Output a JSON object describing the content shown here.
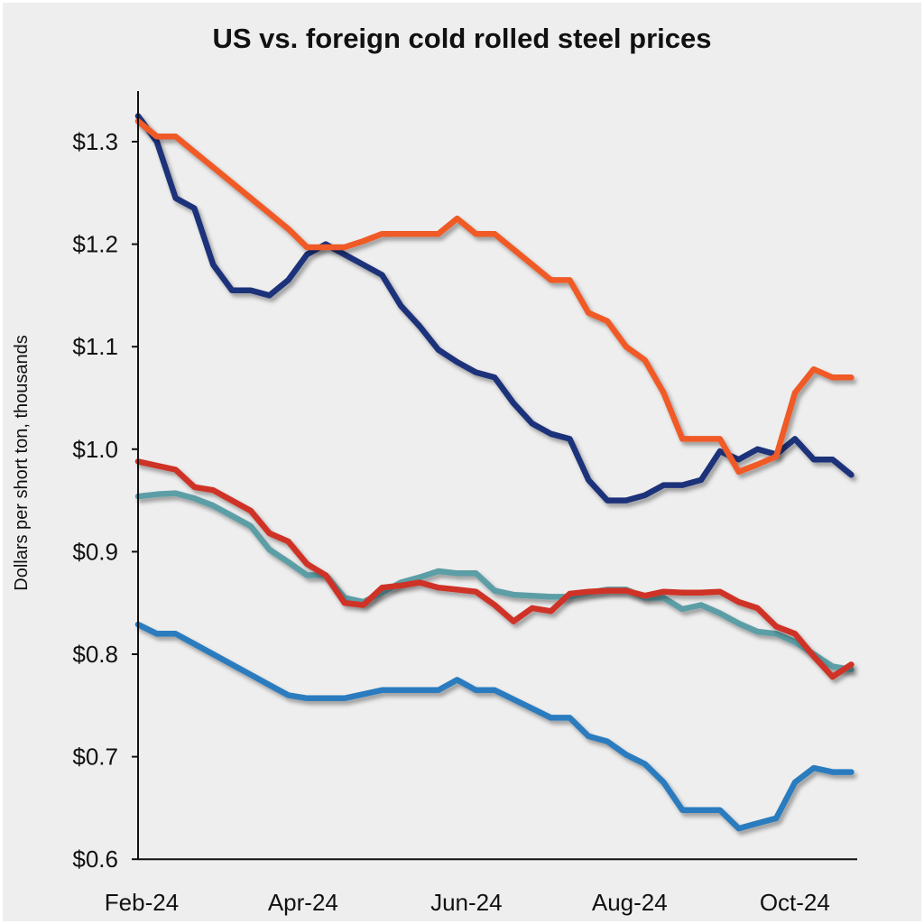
{
  "chart_data": {
    "type": "line",
    "title": "US vs. foreign cold rolled steel prices",
    "xlabel": "",
    "ylabel": "Dollars per short ton, thousands",
    "ylim": [
      0.6,
      1.33
    ],
    "xlim": [
      0,
      38
    ],
    "grid": false,
    "legend": "none",
    "x_ticks": [
      {
        "x": 0,
        "label": "Feb-24"
      },
      {
        "x": 8.6,
        "label": "Apr-24"
      },
      {
        "x": 17.3,
        "label": "Jun-24"
      },
      {
        "x": 26,
        "label": "Aug-24"
      },
      {
        "x": 34.8,
        "label": "Oct-24"
      }
    ],
    "y_ticks": [
      {
        "y": 1.3,
        "label": "$1.3"
      },
      {
        "y": 1.2,
        "label": "$1.2"
      },
      {
        "y": 1.1,
        "label": "$1.1"
      },
      {
        "y": 1.0,
        "label": "$1.0"
      },
      {
        "y": 0.9,
        "label": "$0.9"
      },
      {
        "y": 0.8,
        "label": "$0.8"
      },
      {
        "y": 0.7,
        "label": "$0.7"
      },
      {
        "y": 0.6,
        "label": "$0.6"
      }
    ],
    "series": [
      {
        "color": "#f05a28",
        "values": [
          1.32,
          1.305,
          1.305,
          1.29,
          1.275,
          1.26,
          1.245,
          1.23,
          1.215,
          1.197,
          1.197,
          1.197,
          1.203,
          1.21,
          1.21,
          1.21,
          1.21,
          1.225,
          1.21,
          1.21,
          1.195,
          1.18,
          1.165,
          1.165,
          1.133,
          1.125,
          1.1,
          1.087,
          1.055,
          1.01,
          1.01,
          1.01,
          0.978,
          0.985,
          0.993,
          1.055,
          1.078,
          1.07,
          1.07
        ]
      },
      {
        "color": "#1f307a",
        "values": [
          1.325,
          1.3,
          1.245,
          1.235,
          1.18,
          1.155,
          1.155,
          1.15,
          1.165,
          1.19,
          1.2,
          1.19,
          1.18,
          1.17,
          1.14,
          1.12,
          1.097,
          1.085,
          1.075,
          1.07,
          1.045,
          1.025,
          1.015,
          1.01,
          0.97,
          0.95,
          0.95,
          0.955,
          0.965,
          0.965,
          0.97,
          0.998,
          0.99,
          1.0,
          0.995,
          1.01,
          0.99,
          0.99,
          0.975
        ]
      },
      {
        "color": "#cf3325",
        "values": [
          0.988,
          0.984,
          0.98,
          0.963,
          0.96,
          0.95,
          0.94,
          0.918,
          0.91,
          0.888,
          0.877,
          0.85,
          0.848,
          0.865,
          0.867,
          0.87,
          0.865,
          0.863,
          0.861,
          0.848,
          0.832,
          0.845,
          0.842,
          0.859,
          0.861,
          0.862,
          0.862,
          0.857,
          0.861,
          0.86,
          0.86,
          0.861,
          0.851,
          0.845,
          0.827,
          0.82,
          0.798,
          0.778,
          0.79
        ]
      },
      {
        "color": "#5b9ea6",
        "values": [
          0.954,
          0.956,
          0.957,
          0.952,
          0.945,
          0.935,
          0.925,
          0.902,
          0.89,
          0.877,
          0.877,
          0.855,
          0.851,
          0.86,
          0.87,
          0.875,
          0.881,
          0.879,
          0.879,
          0.862,
          0.858,
          0.857,
          0.856,
          0.856,
          0.86,
          0.863,
          0.863,
          0.855,
          0.855,
          0.844,
          0.848,
          0.84,
          0.83,
          0.822,
          0.82,
          0.812,
          0.8,
          0.788,
          0.785
        ]
      },
      {
        "color": "#2a7bbf",
        "values": [
          0.829,
          0.82,
          0.82,
          0.81,
          0.8,
          0.79,
          0.78,
          0.77,
          0.76,
          0.757,
          0.757,
          0.757,
          0.761,
          0.765,
          0.765,
          0.765,
          0.765,
          0.775,
          0.765,
          0.765,
          0.756,
          0.747,
          0.738,
          0.738,
          0.72,
          0.715,
          0.702,
          0.693,
          0.675,
          0.648,
          0.648,
          0.648,
          0.63,
          0.635,
          0.64,
          0.675,
          0.689,
          0.685,
          0.685
        ]
      }
    ]
  }
}
